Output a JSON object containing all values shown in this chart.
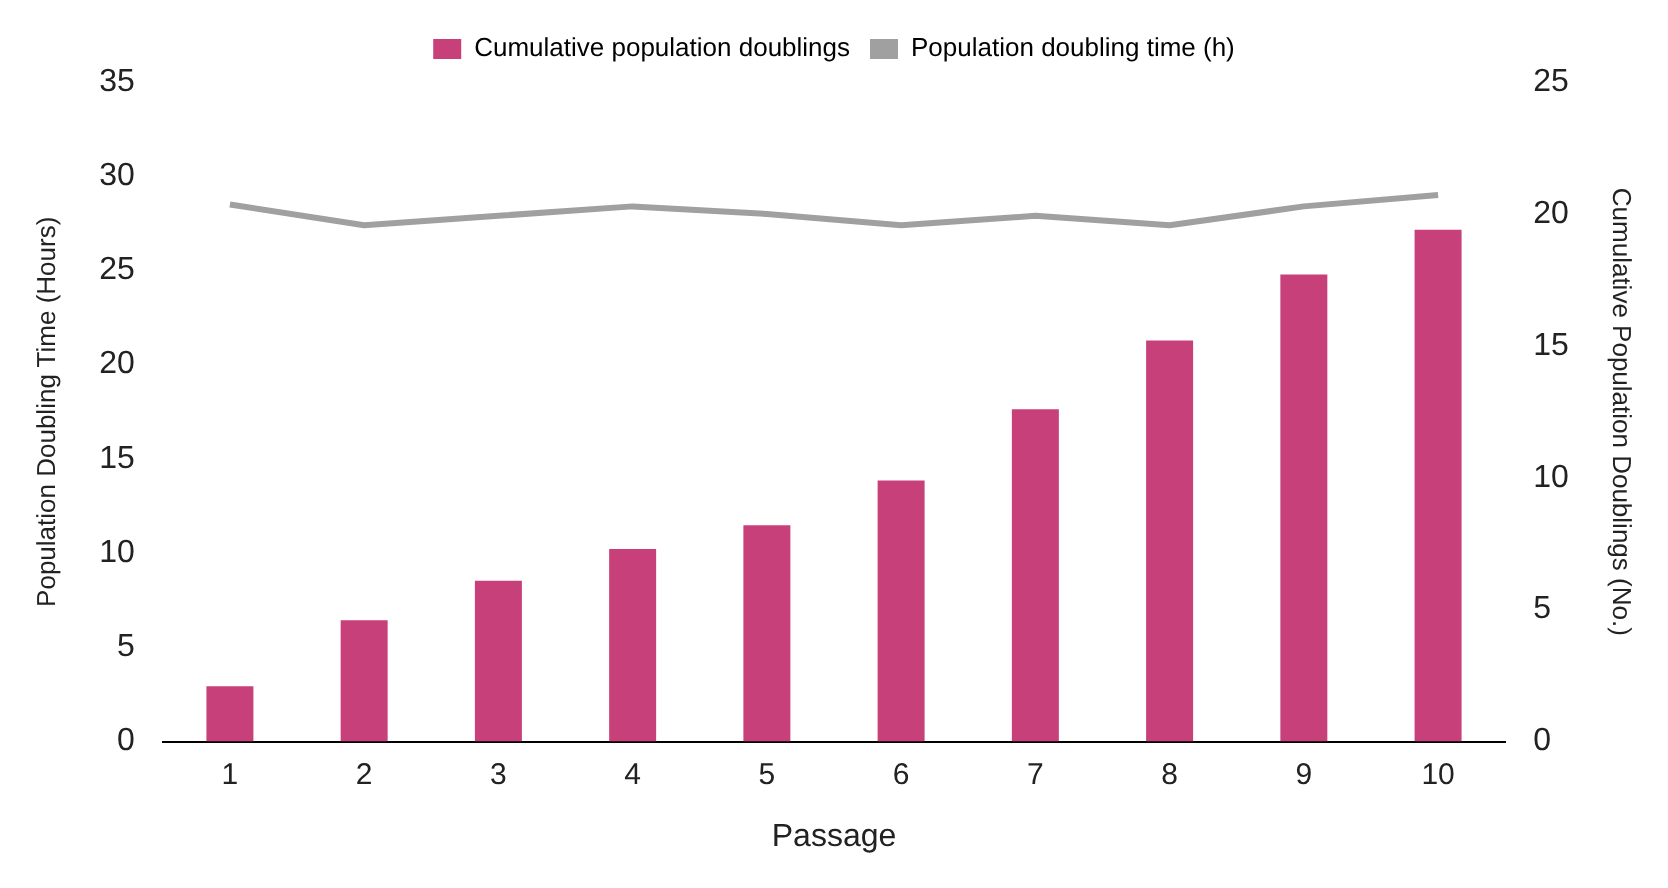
{
  "chart_data": {
    "type": "bar",
    "xlabel": "Passage",
    "ylabel": "Population Doubling Time (Hours)",
    "y2label": "Cumulative Population Doublings (No.)",
    "categories": [
      "1",
      "2",
      "3",
      "4",
      "5",
      "6",
      "7",
      "8",
      "9",
      "10"
    ],
    "series": [
      {
        "name": "Cumulative population doublings",
        "axis": "y2",
        "color": "#c8407a",
        "values": [
          2.1,
          4.6,
          6.1,
          7.3,
          8.2,
          9.9,
          12.6,
          15.2,
          17.7,
          19.4
        ]
      },
      {
        "name": "Population doubling time (h)",
        "type": "line",
        "axis": "y",
        "color": "#a0a0a0",
        "values": [
          28.5,
          27.4,
          27.9,
          28.4,
          28.0,
          27.4,
          27.9,
          27.4,
          28.4,
          29.0
        ]
      }
    ],
    "ylim": [
      0,
      35
    ],
    "yticks": [
      0,
      5,
      10,
      15,
      20,
      25,
      30,
      35
    ],
    "y2lim": [
      0,
      25
    ],
    "y2ticks": [
      0,
      5,
      10,
      15,
      20,
      25
    ],
    "grid": false,
    "legend": "top",
    "marker": "none",
    "line_style": "solid"
  }
}
